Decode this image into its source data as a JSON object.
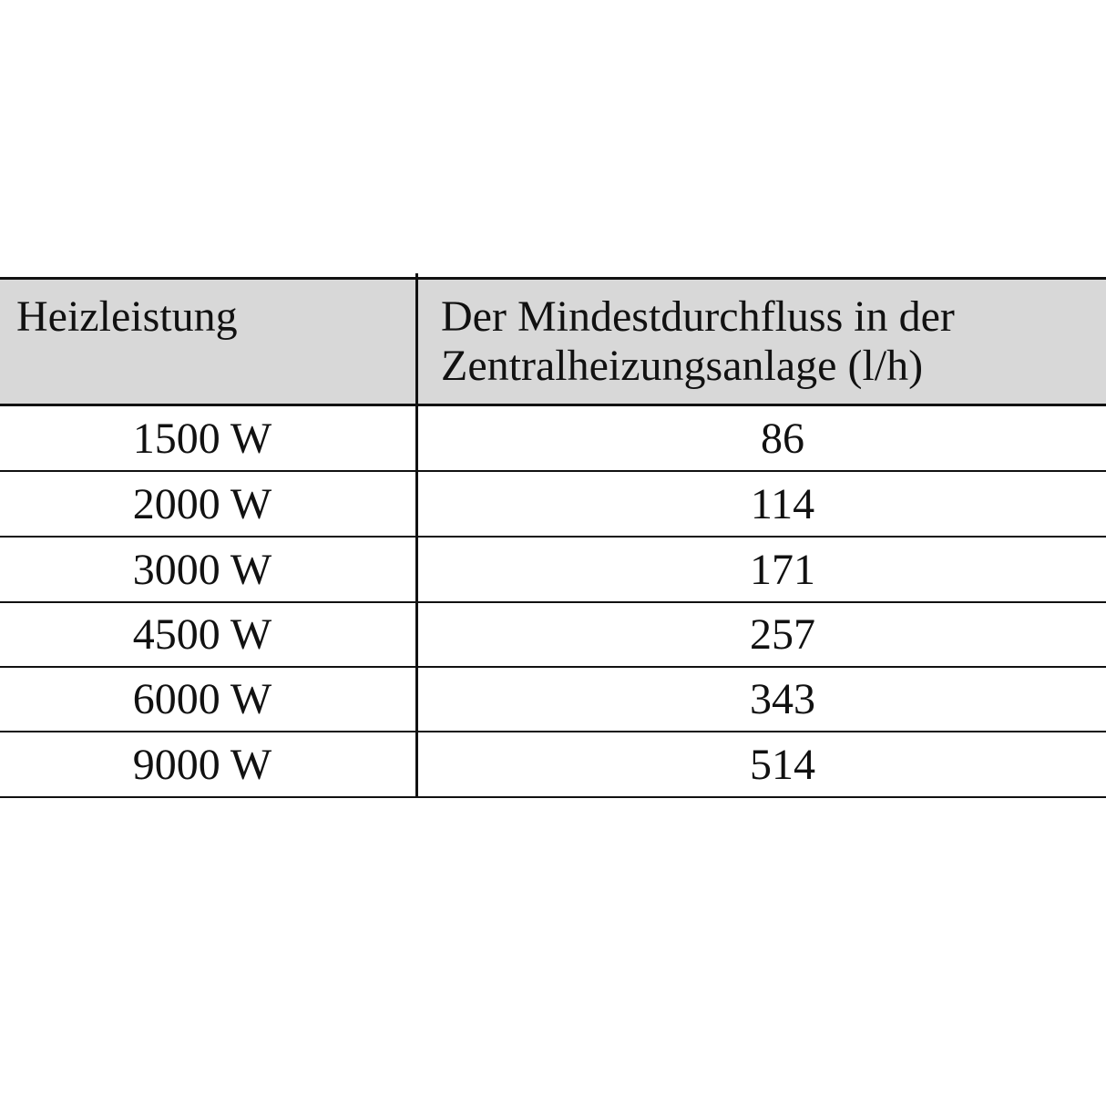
{
  "table": {
    "headers": [
      "Heizleistung",
      "Der Mindestdurchfluss in der Zentralheizungsanlage (l/h)"
    ],
    "rows": [
      {
        "power": "1500 W",
        "flow": "86"
      },
      {
        "power": "2000 W",
        "flow": "114"
      },
      {
        "power": "3000 W",
        "flow": "171"
      },
      {
        "power": "4500 W",
        "flow": "257"
      },
      {
        "power": "6000 W",
        "flow": "343"
      },
      {
        "power": "9000 W",
        "flow": "514"
      }
    ],
    "header_bg": "#d8d8d8"
  }
}
